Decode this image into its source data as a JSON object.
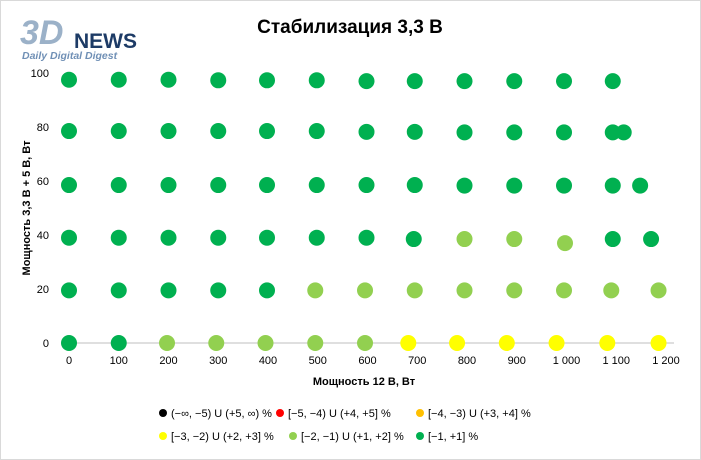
{
  "logo": {
    "main": "3D",
    "word": "NEWS",
    "tagline": "Daily Digital Digest",
    "colors": {
      "main": "#9bb1c8",
      "word": "#1d3b66",
      "tagline": "#6f8fb5"
    }
  },
  "chart_data": {
    "type": "scatter",
    "title": "Стабилизация 3,3 В",
    "xlabel": "Мощность  12 В, Вт",
    "ylabel": "Мощность  3,3 В + 5 В, Вт",
    "xlim": [
      0,
      1200
    ],
    "ylim": [
      0,
      100
    ],
    "x_ticks": [
      {
        "value": 0,
        "label": "0"
      },
      {
        "value": 100,
        "label": "100"
      },
      {
        "value": 200,
        "label": "200"
      },
      {
        "value": 300,
        "label": "300"
      },
      {
        "value": 400,
        "label": "400"
      },
      {
        "value": 500,
        "label": "500"
      },
      {
        "value": 600,
        "label": "600"
      },
      {
        "value": 700,
        "label": "700"
      },
      {
        "value": 800,
        "label": "800"
      },
      {
        "value": 900,
        "label": "900"
      },
      {
        "value": 1000,
        "label": "1 000"
      },
      {
        "value": 1100,
        "label": "1 100"
      },
      {
        "value": 1200,
        "label": "1 200"
      }
    ],
    "y_ticks": [
      {
        "value": 0,
        "label": "0"
      },
      {
        "value": 20,
        "label": "20"
      },
      {
        "value": 40,
        "label": "40"
      },
      {
        "value": 60,
        "label": "60"
      },
      {
        "value": 80,
        "label": "80"
      },
      {
        "value": 100,
        "label": "100"
      }
    ],
    "grid": false,
    "legend_position": "bottom",
    "series": [
      {
        "name": "(−∞, −5) U (+5, ∞) %",
        "color": "#000000",
        "points": []
      },
      {
        "name": "[−5, −4) U (+4, +5] %",
        "color": "#ff0000",
        "points": []
      },
      {
        "name": "[−4, −3) U (+3, +4] %",
        "color": "#ffc000",
        "points": []
      },
      {
        "name": "[−3, −2) U (+2, +3] %",
        "color": "#ffff00",
        "points": [
          [
            682,
            0
          ],
          [
            780,
            0
          ],
          [
            880,
            0
          ],
          [
            980,
            0
          ],
          [
            1082,
            0
          ],
          [
            1185,
            0
          ]
        ]
      },
      {
        "name": "[−2, −1) U (+1, +2] %",
        "color": "#92d050",
        "points": [
          [
            197,
            0
          ],
          [
            296,
            0
          ],
          [
            395,
            0
          ],
          [
            495,
            0
          ],
          [
            595,
            0
          ],
          [
            495,
            19.5
          ],
          [
            595,
            19.5
          ],
          [
            695,
            19.5
          ],
          [
            795,
            19.5
          ],
          [
            895,
            19.5
          ],
          [
            995,
            19.5
          ],
          [
            1090,
            19.5
          ],
          [
            1185,
            19.5
          ],
          [
            795,
            38.5
          ],
          [
            895,
            38.5
          ],
          [
            997,
            37
          ]
        ]
      },
      {
        "name": "[−1, +1] %",
        "color": "#00b050",
        "points": [
          [
            0,
            0
          ],
          [
            100,
            0
          ],
          [
            0,
            19.5
          ],
          [
            100,
            19.5
          ],
          [
            200,
            19.5
          ],
          [
            300,
            19.5
          ],
          [
            398,
            19.5
          ],
          [
            0,
            39
          ],
          [
            100,
            39
          ],
          [
            200,
            39
          ],
          [
            300,
            39
          ],
          [
            398,
            39
          ],
          [
            498,
            39
          ],
          [
            598,
            39
          ],
          [
            693,
            38.5
          ],
          [
            1093,
            38.5
          ],
          [
            1170,
            38.5
          ],
          [
            0,
            58.5
          ],
          [
            100,
            58.5
          ],
          [
            200,
            58.5
          ],
          [
            300,
            58.5
          ],
          [
            398,
            58.5
          ],
          [
            498,
            58.5
          ],
          [
            598,
            58.5
          ],
          [
            695,
            58.5
          ],
          [
            795,
            58.3
          ],
          [
            895,
            58.3
          ],
          [
            995,
            58.3
          ],
          [
            1093,
            58.3
          ],
          [
            1148,
            58.3
          ],
          [
            0,
            78.5
          ],
          [
            100,
            78.5
          ],
          [
            200,
            78.5
          ],
          [
            300,
            78.5
          ],
          [
            398,
            78.5
          ],
          [
            498,
            78.5
          ],
          [
            598,
            78.2
          ],
          [
            695,
            78.2
          ],
          [
            795,
            78
          ],
          [
            895,
            78
          ],
          [
            995,
            78
          ],
          [
            1093,
            78
          ],
          [
            1115,
            78
          ],
          [
            0,
            97.5
          ],
          [
            100,
            97.5
          ],
          [
            200,
            97.5
          ],
          [
            300,
            97.3
          ],
          [
            398,
            97.3
          ],
          [
            498,
            97.3
          ],
          [
            598,
            97
          ],
          [
            695,
            97
          ],
          [
            795,
            97
          ],
          [
            895,
            97
          ],
          [
            995,
            97
          ],
          [
            1093,
            97
          ]
        ]
      }
    ]
  }
}
